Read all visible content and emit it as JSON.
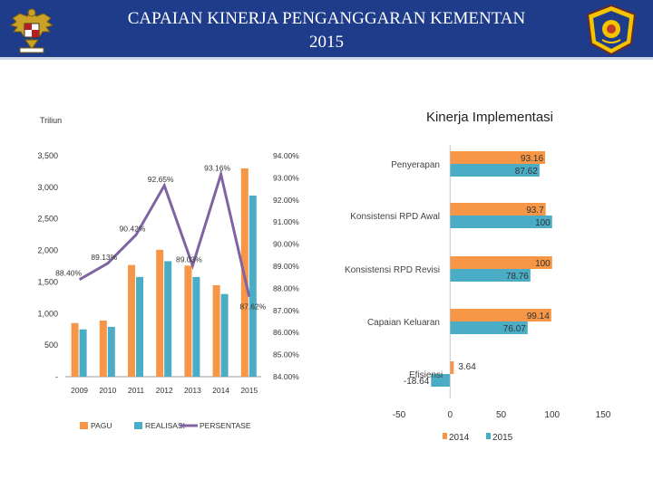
{
  "header": {
    "title_line1": "CAPAIAN KINERJA PENGANGGARAN KEMENTAN",
    "title_line2": "2015",
    "colors": {
      "bar": "#1f3c8a",
      "text": "#ffffff"
    },
    "emblem_icon": "garuda-emblem-icon",
    "logo_icon": "ministry-shield-logo-icon"
  },
  "chart_data": [
    {
      "type": "bar",
      "ylabel": "Triliun",
      "y_ticks": [
        "-",
        "500",
        "1,000",
        "1,500",
        "2,000",
        "2,500",
        "3,000",
        "3,500"
      ],
      "ylim": [
        0,
        3500
      ],
      "y2_ticks": [
        "84.00%",
        "85.00%",
        "86.00%",
        "87.00%",
        "88.00%",
        "89.00%",
        "90.00%",
        "91.00%",
        "92.00%",
        "93.00%",
        "94.00%"
      ],
      "y2lim": [
        84,
        94
      ],
      "categories": [
        "2009",
        "2010",
        "2011",
        "2012",
        "2013",
        "2014",
        "2015"
      ],
      "series": [
        {
          "name": "PAGU",
          "type": "bar",
          "color": "#f79646",
          "values": [
            850,
            890,
            1770,
            2010,
            1760,
            1450,
            3300
          ]
        },
        {
          "name": "REALISASI",
          "type": "bar",
          "color": "#4bacc6",
          "values": [
            750,
            790,
            1580,
            1830,
            1580,
            1310,
            2870
          ]
        },
        {
          "name": "PERSENTASE",
          "type": "line",
          "axis": "right",
          "color": "#8064a2",
          "values": [
            88.4,
            89.13,
            90.42,
            92.65,
            89.03,
            93.16,
            87.62
          ],
          "labels": [
            "88.40%",
            "89.13%",
            "90.42%",
            "92.65%",
            "89.03%",
            "93.16%",
            "87.62%"
          ]
        }
      ],
      "legend": "bottom",
      "grid": false
    },
    {
      "type": "bar",
      "orientation": "horizontal",
      "title": "Kinerja Implementasi",
      "categories": [
        "Penyerapan",
        "Konsistensi RPD Awal",
        "Konsistensi RPD Revisi",
        "Capaian Keluaran",
        "Efisiensi"
      ],
      "series": [
        {
          "name": "2014",
          "color": "#f79646",
          "values": [
            93.16,
            93.7,
            100,
            99.14,
            3.64
          ],
          "labels": [
            "93.16",
            "93.7",
            "100",
            "99.14",
            "3.64"
          ]
        },
        {
          "name": "2015",
          "color": "#4bacc6",
          "values": [
            87.62,
            100,
            78.76,
            76.07,
            -18.64
          ],
          "labels": [
            "87.62",
            "100",
            "78.76",
            "76.07",
            "-18.64"
          ]
        }
      ],
      "x_ticks": [
        "-50",
        "0",
        "50",
        "100",
        "150"
      ],
      "xlim": [
        -50,
        150
      ],
      "legend": "bottom",
      "grid": false
    }
  ]
}
